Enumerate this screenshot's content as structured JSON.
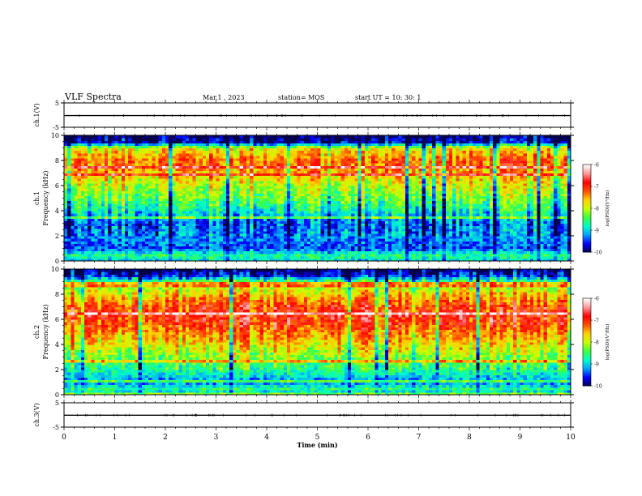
{
  "header": {
    "title": "VLF Spectra",
    "date": "Mar.1  , 2023",
    "station": "station= MOS",
    "start_ut": "start  UT =   10: 30: 1"
  },
  "chart_data": [
    {
      "type": "line",
      "panel": "ch1-waveform",
      "ylabel": "ch.1(V)",
      "ylim": [
        -5,
        5
      ],
      "yticks": [
        "5",
        "-5"
      ],
      "xlim": [
        0,
        10
      ],
      "series": [
        {
          "values": [
            -0.2,
            -0.2,
            -0.2,
            -0.2,
            -0.2,
            -0.2,
            -0.2,
            -0.2,
            -0.2,
            -0.2,
            -0.2
          ]
        }
      ]
    },
    {
      "type": "heatmap",
      "panel": "ch1-spectrogram",
      "ylabel": "ch.1\nFrequency (kHz)",
      "ylim": [
        0,
        10
      ],
      "yticks": [
        "0",
        "2",
        "4",
        "6",
        "8",
        "10"
      ],
      "xlim": [
        0,
        10
      ],
      "band_levels": [
        [
          0.0,
          -9.0
        ],
        [
          0.5,
          -8.6
        ],
        [
          1.0,
          -9.4
        ],
        [
          2.0,
          -9.2
        ],
        [
          3.0,
          -9.4
        ],
        [
          4.0,
          -8.8
        ],
        [
          5.0,
          -8.3
        ],
        [
          6.0,
          -8.0
        ],
        [
          7.0,
          -7.5
        ],
        [
          8.0,
          -7.2
        ],
        [
          9.0,
          -7.8
        ],
        [
          9.5,
          -9.8
        ],
        [
          10.0,
          -10.0
        ]
      ],
      "colorbar": {
        "label": "log(PSD)(V²/Hz)",
        "range": [
          -10,
          -6
        ],
        "ticks": [
          "-6",
          "-7",
          "-8",
          "-9",
          "-10"
        ]
      }
    },
    {
      "type": "heatmap",
      "panel": "ch2-spectrogram",
      "ylabel": "ch.2\nFrequency (kHz)",
      "ylim": [
        0,
        10
      ],
      "yticks": [
        "0",
        "2",
        "4",
        "6",
        "8",
        "10"
      ],
      "xlim": [
        0,
        10
      ],
      "band_levels": [
        [
          0.0,
          -9.2
        ],
        [
          0.5,
          -8.6
        ],
        [
          1.0,
          -9.3
        ],
        [
          2.0,
          -8.6
        ],
        [
          3.0,
          -8.2
        ],
        [
          4.0,
          -7.7
        ],
        [
          5.0,
          -7.3
        ],
        [
          6.0,
          -6.9
        ],
        [
          7.0,
          -7.0
        ],
        [
          8.0,
          -7.6
        ],
        [
          9.0,
          -8.3
        ],
        [
          9.5,
          -9.5
        ],
        [
          10.0,
          -10.0
        ]
      ],
      "colorbar": {
        "label": "log(PSD)(V²/Hz)",
        "range": [
          -10,
          -6
        ],
        "ticks": [
          "-6",
          "-7",
          "-8",
          "-9",
          "-10"
        ]
      }
    },
    {
      "type": "line",
      "panel": "ch3-waveform",
      "ylabel": "ch.3(V)",
      "ylim": [
        -5,
        5
      ],
      "yticks": [
        "5",
        "-5"
      ],
      "xlim": [
        0,
        10
      ],
      "xlabel": "Time  (min)",
      "xticks": [
        "0",
        "1",
        "2",
        "3",
        "4",
        "5",
        "6",
        "7",
        "8",
        "9",
        "10"
      ],
      "series": [
        {
          "values": [
            -0.1,
            -0.1,
            -0.1,
            -0.1,
            -0.1,
            -0.1,
            -0.1,
            -0.1,
            -0.1,
            -0.1,
            -0.1
          ]
        }
      ]
    }
  ],
  "colors": {
    "colormap": [
      "#00004a",
      "#0000ff",
      "#00a0ff",
      "#00ffc8",
      "#40ff40",
      "#c8ff00",
      "#ffd000",
      "#ff5000",
      "#ff0000",
      "#ff9a9a",
      "#ffffff"
    ],
    "axes": "#000000"
  }
}
